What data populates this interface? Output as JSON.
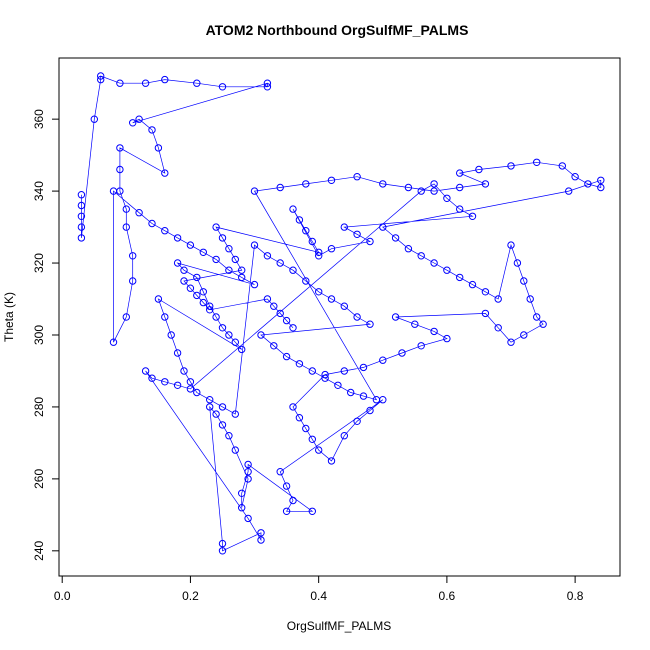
{
  "chart_data": {
    "type": "scatter",
    "title": "ATOM2 Northbound OrgSulfMF_PALMS",
    "xlabel": "OrgSulfMF_PALMS",
    "ylabel": "Theta (K)",
    "xlim": [
      -0.005,
      0.87
    ],
    "ylim": [
      233,
      377
    ],
    "xticks": [
      0.0,
      0.2,
      0.4,
      0.6,
      0.8
    ],
    "xtick_labels": [
      "0.0",
      "0.2",
      "0.4",
      "0.6",
      "0.8"
    ],
    "yticks": [
      240,
      260,
      280,
      300,
      320,
      340,
      360
    ],
    "ytick_labels": [
      "240",
      "260",
      "280",
      "300",
      "320",
      "340",
      "360"
    ],
    "grid": false,
    "legend": "none",
    "marker": "open-circle",
    "connect_points": true,
    "series": [
      {
        "color": "#0000ff",
        "points": [
          [
            0.03,
            333
          ],
          [
            0.03,
            336
          ],
          [
            0.03,
            339
          ],
          [
            0.03,
            330
          ],
          [
            0.03,
            327
          ],
          [
            0.05,
            360
          ],
          [
            0.06,
            371
          ],
          [
            0.06,
            372
          ],
          [
            0.09,
            370
          ],
          [
            0.13,
            370
          ],
          [
            0.16,
            371
          ],
          [
            0.21,
            370
          ],
          [
            0.25,
            369
          ],
          [
            0.32,
            369
          ],
          [
            0.32,
            370
          ],
          [
            0.11,
            359
          ],
          [
            0.12,
            360
          ],
          [
            0.14,
            357
          ],
          [
            0.15,
            352
          ],
          [
            0.16,
            345
          ],
          [
            0.09,
            352
          ],
          [
            0.09,
            346
          ],
          [
            0.09,
            340
          ],
          [
            0.1,
            335
          ],
          [
            0.1,
            330
          ],
          [
            0.11,
            322
          ],
          [
            0.11,
            315
          ],
          [
            0.1,
            305
          ],
          [
            0.08,
            298
          ],
          [
            0.08,
            340
          ],
          [
            0.12,
            334
          ],
          [
            0.14,
            331
          ],
          [
            0.16,
            329
          ],
          [
            0.18,
            327
          ],
          [
            0.2,
            325
          ],
          [
            0.22,
            323
          ],
          [
            0.24,
            321
          ],
          [
            0.26,
            318
          ],
          [
            0.28,
            316
          ],
          [
            0.3,
            314
          ],
          [
            0.18,
            320
          ],
          [
            0.19,
            318
          ],
          [
            0.21,
            316
          ],
          [
            0.22,
            312
          ],
          [
            0.23,
            308
          ],
          [
            0.24,
            305
          ],
          [
            0.25,
            302
          ],
          [
            0.26,
            300
          ],
          [
            0.27,
            298
          ],
          [
            0.28,
            296
          ],
          [
            0.15,
            310
          ],
          [
            0.16,
            305
          ],
          [
            0.17,
            300
          ],
          [
            0.18,
            295
          ],
          [
            0.19,
            290
          ],
          [
            0.2,
            287
          ],
          [
            0.21,
            284
          ],
          [
            0.23,
            282
          ],
          [
            0.25,
            280
          ],
          [
            0.27,
            278
          ],
          [
            0.3,
            325
          ],
          [
            0.32,
            322
          ],
          [
            0.34,
            320
          ],
          [
            0.36,
            318
          ],
          [
            0.38,
            315
          ],
          [
            0.4,
            312
          ],
          [
            0.42,
            310
          ],
          [
            0.44,
            308
          ],
          [
            0.46,
            305
          ],
          [
            0.48,
            303
          ],
          [
            0.31,
            300
          ],
          [
            0.33,
            297
          ],
          [
            0.35,
            294
          ],
          [
            0.37,
            292
          ],
          [
            0.39,
            290
          ],
          [
            0.41,
            288
          ],
          [
            0.43,
            286
          ],
          [
            0.45,
            284
          ],
          [
            0.47,
            283
          ],
          [
            0.49,
            282
          ],
          [
            0.3,
            340
          ],
          [
            0.34,
            341
          ],
          [
            0.38,
            342
          ],
          [
            0.42,
            343
          ],
          [
            0.46,
            344
          ],
          [
            0.5,
            342
          ],
          [
            0.54,
            341
          ],
          [
            0.58,
            340
          ],
          [
            0.62,
            341
          ],
          [
            0.66,
            342
          ],
          [
            0.62,
            345
          ],
          [
            0.65,
            346
          ],
          [
            0.7,
            347
          ],
          [
            0.74,
            348
          ],
          [
            0.78,
            347
          ],
          [
            0.8,
            344
          ],
          [
            0.82,
            342
          ],
          [
            0.84,
            341
          ],
          [
            0.84,
            343
          ],
          [
            0.79,
            340
          ],
          [
            0.5,
            330
          ],
          [
            0.52,
            327
          ],
          [
            0.54,
            324
          ],
          [
            0.56,
            322
          ],
          [
            0.58,
            320
          ],
          [
            0.6,
            318
          ],
          [
            0.62,
            316
          ],
          [
            0.64,
            314
          ],
          [
            0.66,
            312
          ],
          [
            0.68,
            310
          ],
          [
            0.7,
            325
          ],
          [
            0.71,
            320
          ],
          [
            0.72,
            315
          ],
          [
            0.73,
            310
          ],
          [
            0.74,
            305
          ],
          [
            0.75,
            303
          ],
          [
            0.72,
            300
          ],
          [
            0.7,
            298
          ],
          [
            0.68,
            302
          ],
          [
            0.66,
            306
          ],
          [
            0.52,
            305
          ],
          [
            0.55,
            303
          ],
          [
            0.58,
            301
          ],
          [
            0.6,
            299
          ],
          [
            0.56,
            297
          ],
          [
            0.53,
            295
          ],
          [
            0.5,
            293
          ],
          [
            0.47,
            291
          ],
          [
            0.44,
            290
          ],
          [
            0.41,
            289
          ],
          [
            0.36,
            280
          ],
          [
            0.37,
            277
          ],
          [
            0.38,
            274
          ],
          [
            0.39,
            271
          ],
          [
            0.4,
            268
          ],
          [
            0.42,
            265
          ],
          [
            0.44,
            272
          ],
          [
            0.46,
            276
          ],
          [
            0.48,
            279
          ],
          [
            0.5,
            282
          ],
          [
            0.34,
            262
          ],
          [
            0.35,
            258
          ],
          [
            0.36,
            254
          ],
          [
            0.35,
            251
          ],
          [
            0.39,
            251
          ],
          [
            0.29,
            264
          ],
          [
            0.29,
            262
          ],
          [
            0.28,
            256
          ],
          [
            0.28,
            252
          ],
          [
            0.29,
            260
          ],
          [
            0.27,
            268
          ],
          [
            0.26,
            272
          ],
          [
            0.25,
            275
          ],
          [
            0.24,
            278
          ],
          [
            0.23,
            280
          ],
          [
            0.25,
            242
          ],
          [
            0.25,
            240
          ],
          [
            0.31,
            245
          ],
          [
            0.31,
            243
          ],
          [
            0.29,
            249
          ],
          [
            0.13,
            290
          ],
          [
            0.14,
            288
          ],
          [
            0.16,
            287
          ],
          [
            0.18,
            286
          ],
          [
            0.2,
            285
          ],
          [
            0.56,
            340
          ],
          [
            0.58,
            342
          ],
          [
            0.6,
            338
          ],
          [
            0.62,
            335
          ],
          [
            0.64,
            333
          ],
          [
            0.44,
            330
          ],
          [
            0.46,
            328
          ],
          [
            0.48,
            326
          ],
          [
            0.42,
            324
          ],
          [
            0.4,
            322
          ],
          [
            0.36,
            335
          ],
          [
            0.37,
            332
          ],
          [
            0.38,
            329
          ],
          [
            0.39,
            326
          ],
          [
            0.4,
            323
          ],
          [
            0.24,
            330
          ],
          [
            0.25,
            327
          ],
          [
            0.26,
            324
          ],
          [
            0.27,
            321
          ],
          [
            0.28,
            318
          ],
          [
            0.19,
            315
          ],
          [
            0.2,
            313
          ],
          [
            0.21,
            311
          ],
          [
            0.22,
            309
          ],
          [
            0.23,
            307
          ],
          [
            0.32,
            310
          ],
          [
            0.33,
            308
          ],
          [
            0.34,
            306
          ],
          [
            0.35,
            304
          ],
          [
            0.36,
            302
          ]
        ]
      }
    ]
  }
}
